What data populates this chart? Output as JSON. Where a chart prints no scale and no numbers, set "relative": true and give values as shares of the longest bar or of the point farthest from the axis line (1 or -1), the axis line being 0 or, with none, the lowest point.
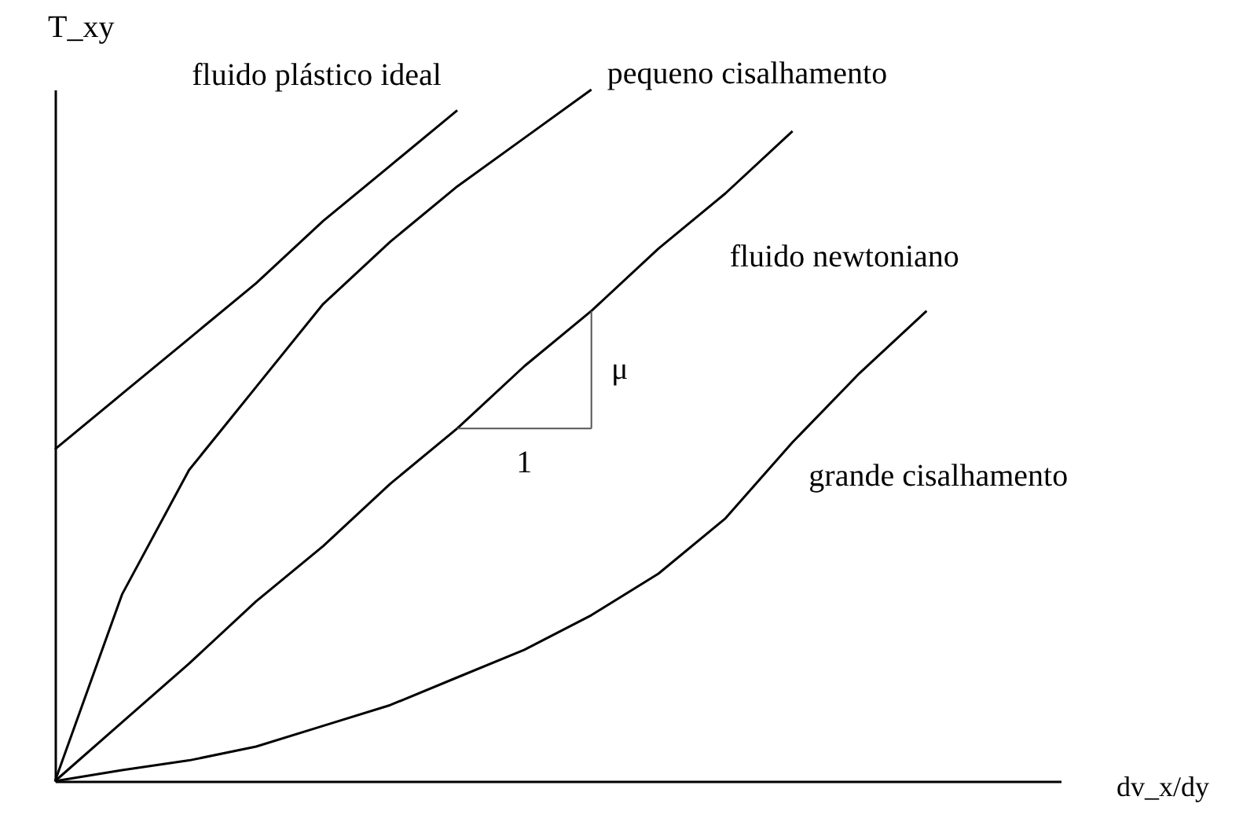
{
  "chart_data": {
    "type": "line",
    "relative": true,
    "xlabel": "dv_x/dy",
    "ylabel": "T_xy",
    "categories": [
      null,
      null,
      null,
      null,
      null,
      null,
      null,
      null,
      null,
      null,
      null,
      null,
      null,
      null,
      null,
      null
    ],
    "series": [
      {
        "name": "fluido plástico ideal",
        "color": "#000000",
        "values": [
          0.48,
          0.56,
          0.64,
          0.72,
          0.81,
          0.89,
          0.97,
          null,
          null,
          null,
          null,
          null,
          null,
          null,
          null,
          null
        ]
      },
      {
        "name": "pequeno cisalhamento",
        "color": "#000000",
        "values": [
          0,
          0.27,
          0.45,
          0.57,
          0.69,
          0.78,
          0.86,
          0.93,
          1,
          null,
          null,
          null,
          null,
          null,
          null,
          null
        ]
      },
      {
        "name": "fluido newtoniano",
        "color": "#000000",
        "values": [
          0,
          0.085,
          0.17,
          0.26,
          0.34,
          0.43,
          0.51,
          0.6,
          0.68,
          0.77,
          0.85,
          0.94,
          null,
          null,
          null,
          null
        ]
      },
      {
        "name": "grande cisalhamento",
        "color": "#000000",
        "values": [
          0,
          0.016,
          0.03,
          0.05,
          0.08,
          0.11,
          0.15,
          0.19,
          0.24,
          0.3,
          0.38,
          0.49,
          0.59,
          0.68,
          null,
          null
        ]
      }
    ],
    "annotations": [
      "1",
      "μ"
    ],
    "grid": false,
    "legend": false,
    "marker": "none",
    "line_style": "solid"
  }
}
